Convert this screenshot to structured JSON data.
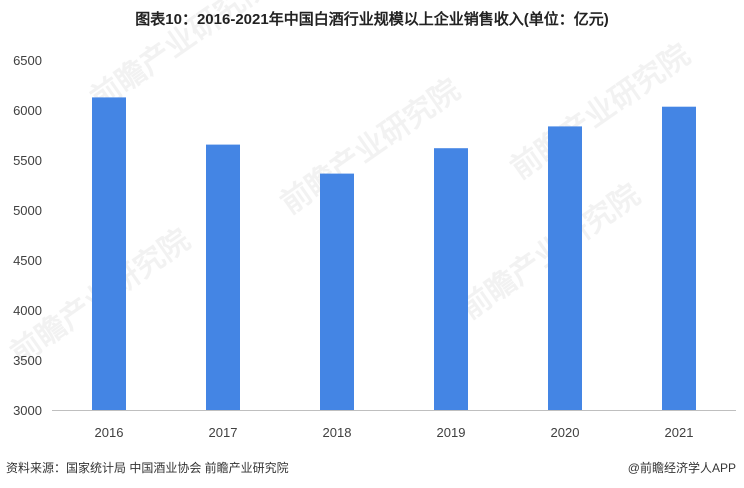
{
  "title": "图表10：2016-2021年中国白酒行业规模以上企业销售收入(单位：亿元)",
  "source": "资料来源：国家统计局 中国酒业协会 前瞻产业研究院",
  "brand": "@前瞻经济学人APP",
  "watermark": "前瞻产业研究院",
  "colors": {
    "bar": "#4485E4",
    "axis": "#BFBFBF"
  },
  "chart_data": {
    "type": "bar",
    "categories": [
      "2016",
      "2017",
      "2018",
      "2019",
      "2020",
      "2021"
    ],
    "values": [
      6126,
      5654,
      5364,
      5618,
      5836,
      6033
    ],
    "ylim": [
      3000,
      6500
    ],
    "yticks": [
      3000,
      3500,
      4000,
      4500,
      5000,
      5500,
      6000,
      6500
    ],
    "grid": false,
    "legend": "none"
  }
}
